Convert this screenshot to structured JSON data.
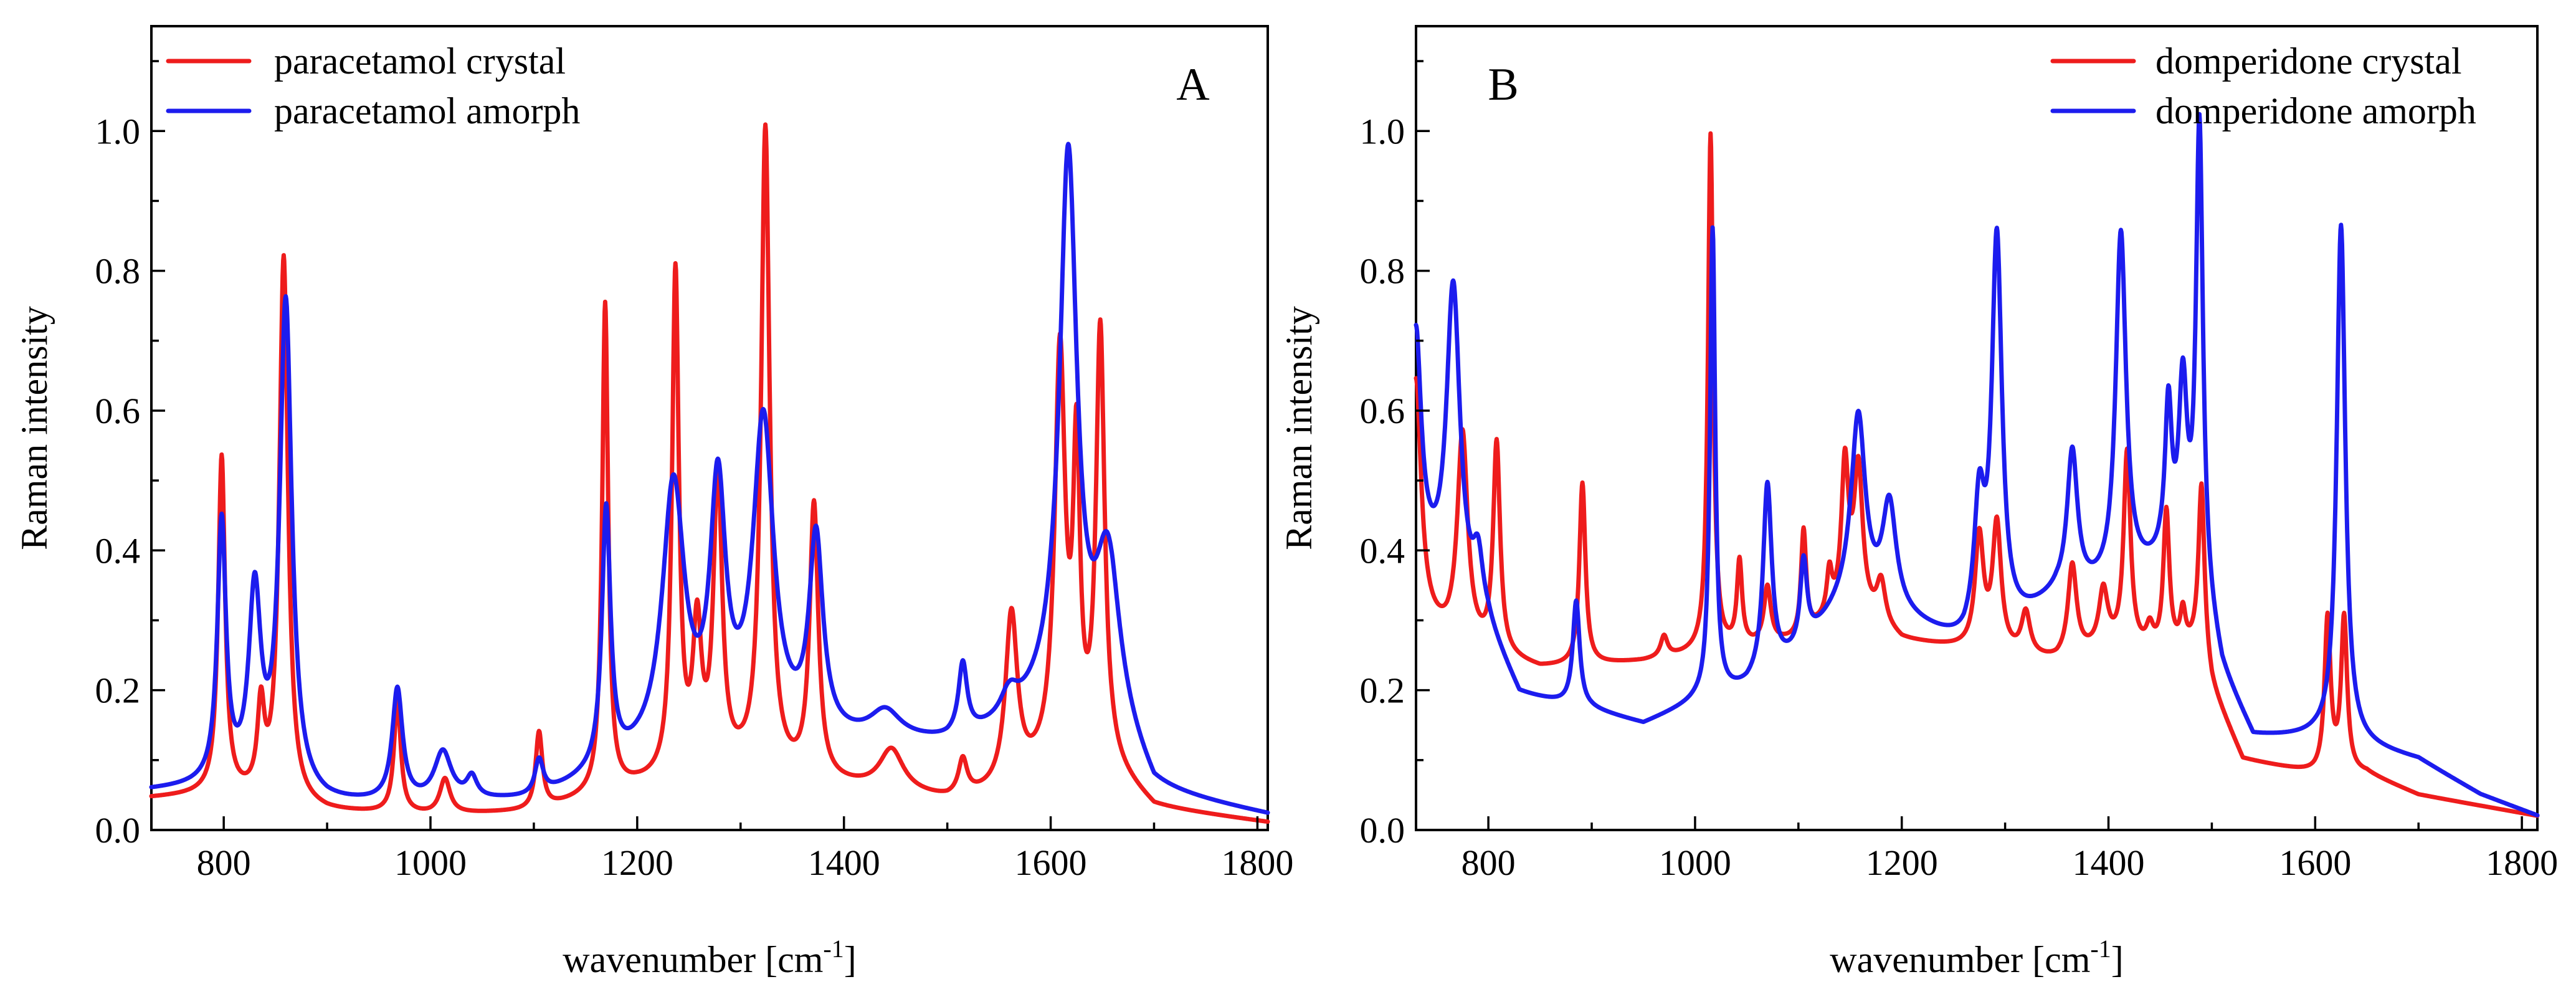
{
  "colors": {
    "crystal": "#ee1c1c",
    "amorph": "#1c1cee"
  },
  "chart_data": [
    {
      "type": "line",
      "panel_label": "A",
      "xlabel": "wavenumber [cm",
      "xlabel_sup": "-1",
      "xlabel_suffix": "]",
      "ylabel": "Raman intensity",
      "xlim": [
        730,
        1810
      ],
      "ylim": [
        0,
        1.15
      ],
      "xticks": [
        800,
        1000,
        1200,
        1400,
        1600,
        1800
      ],
      "yticks": [
        0.0,
        0.2,
        0.4,
        0.6,
        0.8,
        1.0
      ],
      "ytick_labels": [
        "0.0",
        "0.2",
        "0.4",
        "0.6",
        "0.8",
        "1.0"
      ],
      "grid": false,
      "legend_position": "top-left",
      "series": [
        {
          "name": "paracetamol crystal",
          "color_key": "crystal",
          "baseline": [
            [
              730,
              0.045
            ],
            [
              800,
              0.05
            ],
            [
              900,
              0.025
            ],
            [
              1000,
              0.02
            ],
            [
              1100,
              0.025
            ],
            [
              1200,
              0.06
            ],
            [
              1300,
              0.08
            ],
            [
              1400,
              0.06
            ],
            [
              1500,
              0.04
            ],
            [
              1560,
              0.05
            ],
            [
              1600,
              0.09
            ],
            [
              1660,
              0.08
            ],
            [
              1700,
              0.03
            ],
            [
              1810,
              0.01
            ]
          ],
          "peaks": [
            {
              "x": 798,
              "h": 0.48,
              "w": 4
            },
            {
              "x": 836,
              "h": 0.12,
              "w": 4
            },
            {
              "x": 858,
              "h": 0.78,
              "w": 5
            },
            {
              "x": 968,
              "h": 0.16,
              "w": 4
            },
            {
              "x": 1014,
              "h": 0.05,
              "w": 6
            },
            {
              "x": 1105,
              "h": 0.11,
              "w": 4
            },
            {
              "x": 1169,
              "h": 0.7,
              "w": 3.5
            },
            {
              "x": 1237,
              "h": 0.72,
              "w": 4
            },
            {
              "x": 1258,
              "h": 0.2,
              "w": 5
            },
            {
              "x": 1278,
              "h": 0.42,
              "w": 5
            },
            {
              "x": 1324,
              "h": 0.92,
              "w": 5
            },
            {
              "x": 1371,
              "h": 0.39,
              "w": 5
            },
            {
              "x": 1446,
              "h": 0.06,
              "w": 14
            },
            {
              "x": 1515,
              "h": 0.05,
              "w": 5
            },
            {
              "x": 1562,
              "h": 0.25,
              "w": 7
            },
            {
              "x": 1609,
              "h": 0.58,
              "w": 6
            },
            {
              "x": 1625,
              "h": 0.42,
              "w": 4
            },
            {
              "x": 1648,
              "h": 0.62,
              "w": 5
            }
          ]
        },
        {
          "name": "paracetamol amorph",
          "color_key": "amorph",
          "baseline": [
            [
              730,
              0.055
            ],
            [
              800,
              0.06
            ],
            [
              900,
              0.035
            ],
            [
              1000,
              0.035
            ],
            [
              1100,
              0.04
            ],
            [
              1200,
              0.09
            ],
            [
              1300,
              0.12
            ],
            [
              1400,
              0.12
            ],
            [
              1500,
              0.12
            ],
            [
              1560,
              0.14
            ],
            [
              1600,
              0.18
            ],
            [
              1660,
              0.15
            ],
            [
              1700,
              0.05
            ],
            [
              1810,
              0.02
            ]
          ],
          "peaks": [
            {
              "x": 798,
              "h": 0.37,
              "w": 5
            },
            {
              "x": 830,
              "h": 0.27,
              "w": 7
            },
            {
              "x": 860,
              "h": 0.7,
              "w": 7
            },
            {
              "x": 968,
              "h": 0.16,
              "w": 6
            },
            {
              "x": 1012,
              "h": 0.07,
              "w": 10
            },
            {
              "x": 1040,
              "h": 0.03,
              "w": 6
            },
            {
              "x": 1105,
              "h": 0.05,
              "w": 5
            },
            {
              "x": 1170,
              "h": 0.37,
              "w": 5
            },
            {
              "x": 1235,
              "h": 0.38,
              "w": 13
            },
            {
              "x": 1278,
              "h": 0.35,
              "w": 9
            },
            {
              "x": 1322,
              "h": 0.45,
              "w": 12
            },
            {
              "x": 1373,
              "h": 0.28,
              "w": 8
            },
            {
              "x": 1440,
              "h": 0.04,
              "w": 18
            },
            {
              "x": 1515,
              "h": 0.1,
              "w": 5
            },
            {
              "x": 1560,
              "h": 0.04,
              "w": 10
            },
            {
              "x": 1617,
              "h": 0.78,
              "w": 10
            },
            {
              "x": 1655,
              "h": 0.22,
              "w": 14
            }
          ]
        }
      ]
    },
    {
      "type": "line",
      "panel_label": "B",
      "xlabel": "wavenumber [cm",
      "xlabel_sup": "-1",
      "xlabel_suffix": "]",
      "ylabel": "Raman intensity",
      "xlim": [
        730,
        1815
      ],
      "ylim": [
        0,
        1.15
      ],
      "xticks": [
        800,
        1000,
        1200,
        1400,
        1600,
        1800
      ],
      "yticks": [
        0.0,
        0.2,
        0.4,
        0.6,
        0.8,
        1.0
      ],
      "ytick_labels": [
        "0.0",
        "0.2",
        "0.4",
        "0.6",
        "0.8",
        "1.0"
      ],
      "grid": false,
      "legend_position": "top-right",
      "series": [
        {
          "name": "domperidone crystal",
          "color_key": "crystal",
          "baseline": [
            [
              730,
              0.3
            ],
            [
              760,
              0.27
            ],
            [
              800,
              0.25
            ],
            [
              850,
              0.23
            ],
            [
              950,
              0.24
            ],
            [
              1000,
              0.25
            ],
            [
              1100,
              0.27
            ],
            [
              1150,
              0.32
            ],
            [
              1200,
              0.27
            ],
            [
              1300,
              0.25
            ],
            [
              1350,
              0.24
            ],
            [
              1400,
              0.26
            ],
            [
              1450,
              0.25
            ],
            [
              1490,
              0.26
            ],
            [
              1500,
              0.2
            ],
            [
              1530,
              0.1
            ],
            [
              1600,
              0.08
            ],
            [
              1650,
              0.08
            ],
            [
              1700,
              0.05
            ],
            [
              1815,
              0.02
            ]
          ],
          "peaks": [
            {
              "x": 730,
              "h": 0.34,
              "w": 6
            },
            {
              "x": 775,
              "h": 0.3,
              "w": 6
            },
            {
              "x": 808,
              "h": 0.3,
              "w": 4
            },
            {
              "x": 891,
              "h": 0.26,
              "w": 3.5
            },
            {
              "x": 970,
              "h": 0.03,
              "w": 4
            },
            {
              "x": 1015,
              "h": 0.74,
              "w": 3
            },
            {
              "x": 1043,
              "h": 0.12,
              "w": 3
            },
            {
              "x": 1070,
              "h": 0.08,
              "w": 4
            },
            {
              "x": 1105,
              "h": 0.15,
              "w": 3
            },
            {
              "x": 1130,
              "h": 0.06,
              "w": 3
            },
            {
              "x": 1145,
              "h": 0.2,
              "w": 4
            },
            {
              "x": 1158,
              "h": 0.2,
              "w": 5
            },
            {
              "x": 1180,
              "h": 0.06,
              "w": 5
            },
            {
              "x": 1275,
              "h": 0.16,
              "w": 5
            },
            {
              "x": 1292,
              "h": 0.18,
              "w": 5
            },
            {
              "x": 1320,
              "h": 0.06,
              "w": 5
            },
            {
              "x": 1365,
              "h": 0.13,
              "w": 5
            },
            {
              "x": 1395,
              "h": 0.08,
              "w": 5
            },
            {
              "x": 1418,
              "h": 0.28,
              "w": 4
            },
            {
              "x": 1440,
              "h": 0.03,
              "w": 4
            },
            {
              "x": 1456,
              "h": 0.2,
              "w": 3.5
            },
            {
              "x": 1472,
              "h": 0.05,
              "w": 3
            },
            {
              "x": 1490,
              "h": 0.23,
              "w": 3.5
            },
            {
              "x": 1612,
              "h": 0.22,
              "w": 3.5
            },
            {
              "x": 1628,
              "h": 0.22,
              "w": 3.5
            }
          ]
        },
        {
          "name": "domperidone amorph",
          "color_key": "amorph",
          "baseline": [
            [
              730,
              0.4
            ],
            [
              760,
              0.33
            ],
            [
              800,
              0.28
            ],
            [
              830,
              0.19
            ],
            [
              900,
              0.17
            ],
            [
              950,
              0.15
            ],
            [
              1000,
              0.18
            ],
            [
              1050,
              0.2
            ],
            [
              1100,
              0.25
            ],
            [
              1150,
              0.33
            ],
            [
              1200,
              0.3
            ],
            [
              1260,
              0.26
            ],
            [
              1300,
              0.28
            ],
            [
              1350,
              0.33
            ],
            [
              1400,
              0.34
            ],
            [
              1450,
              0.37
            ],
            [
              1490,
              0.34
            ],
            [
              1510,
              0.22
            ],
            [
              1540,
              0.13
            ],
            [
              1600,
              0.13
            ],
            [
              1640,
              0.12
            ],
            [
              1700,
              0.1
            ],
            [
              1760,
              0.05
            ],
            [
              1815,
              0.02
            ]
          ],
          "peaks": [
            {
              "x": 730,
              "h": 0.3,
              "w": 6
            },
            {
              "x": 766,
              "h": 0.45,
              "w": 8
            },
            {
              "x": 790,
              "h": 0.08,
              "w": 6
            },
            {
              "x": 885,
              "h": 0.15,
              "w": 4
            },
            {
              "x": 1017,
              "h": 0.67,
              "w": 3
            },
            {
              "x": 1070,
              "h": 0.27,
              "w": 5
            },
            {
              "x": 1105,
              "h": 0.12,
              "w": 4
            },
            {
              "x": 1158,
              "h": 0.26,
              "w": 8
            },
            {
              "x": 1188,
              "h": 0.15,
              "w": 8
            },
            {
              "x": 1275,
              "h": 0.18,
              "w": 6
            },
            {
              "x": 1292,
              "h": 0.56,
              "w": 6
            },
            {
              "x": 1365,
              "h": 0.2,
              "w": 6
            },
            {
              "x": 1412,
              "h": 0.5,
              "w": 6
            },
            {
              "x": 1458,
              "h": 0.22,
              "w": 4
            },
            {
              "x": 1472,
              "h": 0.26,
              "w": 5
            },
            {
              "x": 1488,
              "h": 0.65,
              "w": 4
            },
            {
              "x": 1625,
              "h": 0.74,
              "w": 5
            }
          ]
        }
      ]
    }
  ]
}
